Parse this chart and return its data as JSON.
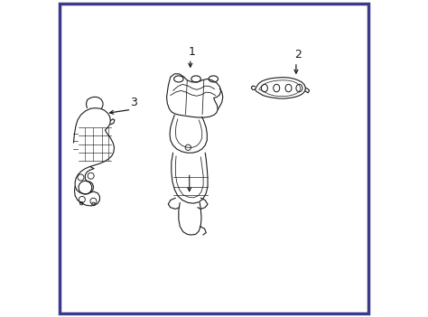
{
  "background_color": "#ffffff",
  "border_color": "#3a3a8c",
  "border_linewidth": 2.5,
  "label_1": "1",
  "label_2": "2",
  "label_3": "3",
  "line_color": "#1a1a1a",
  "line_width": 0.8,
  "label_fontsize": 9,
  "fig_width": 4.74,
  "fig_height": 3.51,
  "dpi": 100
}
